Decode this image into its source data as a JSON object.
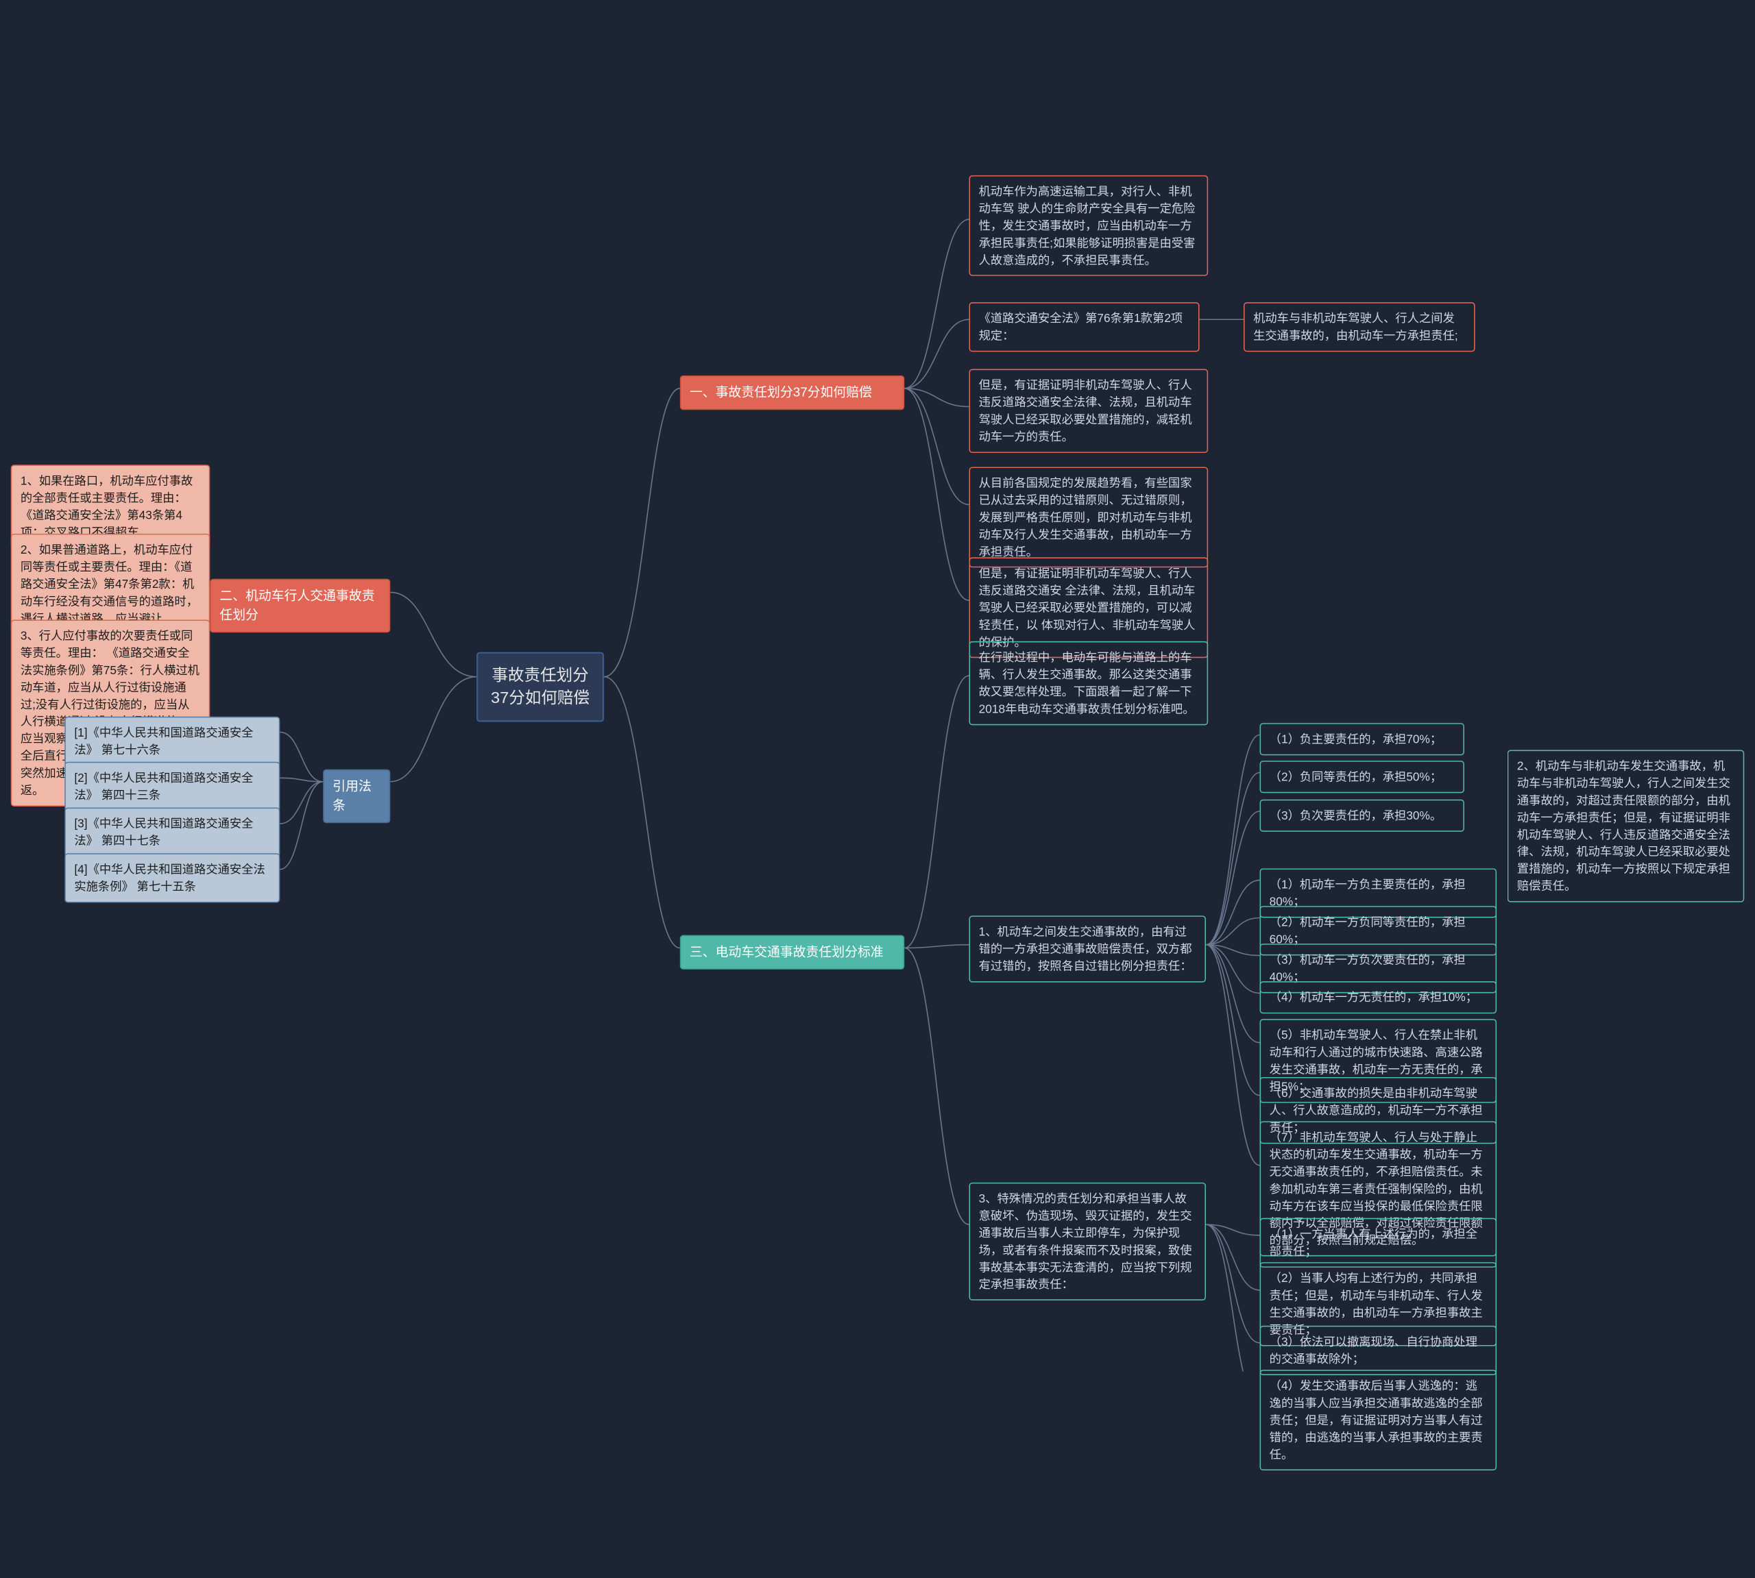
{
  "colors": {
    "bg": "#1d2434",
    "root_fill": "#2c3a55",
    "root_border": "#3c5a8a",
    "red_fill": "#e06555",
    "red_border": "#c9523f",
    "red_l2_fill": "#f0b8a8",
    "red_l2_border": "#e06555",
    "teal_fill": "#4fb8a8",
    "teal_border": "#3a9e8e",
    "teal_l2_fill": "#b8e0d8",
    "teal_l2_border": "#4fb8a8",
    "blue_fill": "#5a7fa8",
    "blue_border": "#4a6a90",
    "blue_l2_fill": "#b8c8d8",
    "blue_l2_border": "#5a7fa8",
    "r_red_border": "#e06555",
    "r_teal_border": "#4fb8a8",
    "r_text": "#c9d4e6",
    "conn": "#6a788f"
  },
  "root": "事故责任划分37分如何赔偿",
  "b1": {
    "title": "一、事故责任划分37分如何赔偿",
    "c1": "机动车作为高速运输工具，对行人、非机动车驾 驶人的生命财产安全具有一定危险性，发生交通事故时，应当由机动车一方承担民事责任;如果能够证明损害是由受害人故意造成的，不承担民事责任。",
    "c2": "《道路交通安全法》第76条第1款第2项规定：",
    "c2a": "机动车与非机动车驾驶人、行人之间发生交通事故的，由机动车一方承担责任;",
    "c3": "但是，有证据证明非机动车驾驶人、行人违反道路交通安全法律、法规，且机动车驾驶人已经采取必要处置措施的，减轻机动车一方的责任。",
    "c4": "从目前各国规定的发展趋势看，有些国家已从过去采用的过错原则、无过错原则，发展到严格责任原则，即对机动车与非机动车及行人发生交通事故，由机动车一方承担责任。",
    "c5": "但是，有证据证明非机动车驾驶人、行人违反道路交通安 全法律、法规，且机动车驾驶人已经采取必要处置措施的，可以减轻责任，以 体现对行人、非机动车驾驶人的保护。"
  },
  "b2": {
    "title": "二、机动车行人交通事故责任划分",
    "c1": "1、如果在路口，机动车应付事故的全部责任或主要责任。理由：《道路交通安全法》第43条第4项：交叉路口不得超车",
    "c2": "2、如果普通道路上，机动车应付同等责任或主要责任。理由：《道路交通安全法》第47条第2款：机动车行经没有交通信号的道路时，遇行人横过道路，应当避让。",
    "c3": "3、行人应付事故的次要责任或同等责任。理由： 《道路交通安全法实施条例》第75条：行人横过机动车道，应当从人行过街设施通过;没有人行过街设施的，应当从人行横道通过;没有人行横道的，应当观察来往车辆的情况，确认安全后直行通过，不得在车辆临近时突然加速横穿或者中途倒退、折返。"
  },
  "b3": {
    "title": "三、电动车交通事故责任划分标准",
    "intro": "在行驶过程中，电动车可能与道路上的车辆、行人发生交通事故。那么这类交通事故又要怎样处理。下面跟着一起了解一下2018年电动车交通事故责任划分标准吧。",
    "p1": "1、机动车之间发生交通事故的，由有过错的一方承担交通事故赔偿责任，双方都有过错的，按照各自过错比例分担责任：",
    "p1a": "（1）负主要责任的，承担70%；",
    "p1b": "（2）负同等责任的，承担50%；",
    "p1c": "（3）负次要责任的，承担30%。",
    "p2": "2、机动车与非机动车发生交通事故，机动车与非机动车驾驶人，行人之间发生交通事故的，对超过责任限额的部分，由机动车一方承担责任；但是，有证据证明非机动车驾驶人、行人违反道路交通安全法律、法规，机动车驾驶人已经采取必要处置措施的，机动车一方按照以下规定承担赔偿责任。",
    "p2a": "（1）机动车一方负主要责任的，承担80%；",
    "p2b": "（2）机动车一方负同等责任的，承担60%；",
    "p2c": "（3）机动车一方负次要责任的，承担40%；",
    "p2d": "（4）机动车一方无责任的，承担10%；",
    "p2e": "（5）非机动车驾驶人、行人在禁止非机动车和行人通过的城市快速路、高速公路发生交通事故，机动车一方无责任的，承担5%；",
    "p2f": "（6）交通事故的损失是由非机动车驾驶人、行人故意造成的，机动车一方不承担责任；",
    "p2g": "（7）非机动车驾驶人、行人与处于静止状态的机动车发生交通事故，机动车一方无交通事故责任的，不承担赔偿责任。未参加机动车第三者责任强制保险的，由机动车方在该车应当投保的最低保险责任限额内予以全部赔偿，对超过保险责任限额的部分，按照当前规定赔偿。",
    "p3": "3、特殊情况的责任划分和承担当事人故意破坏、伪造现场、毁灭证据的，发生交通事故后当事人未立即停车，为保护现场，或者有条件报案而不及时报案，致使事故基本事实无法查清的，应当按下列规定承担事故责任：",
    "p3a": "（1）一方当事人有上述行为的，承担全部责任；",
    "p3b": "（2）当事人均有上述行为的，共同承担责任；但是，机动车与非机动车、行人发生交通事故的，由机动车一方承担事故主要责任；",
    "p3c": "（3）依法可以撤离现场、自行协商处理的交通事故除外；",
    "p3d": "（4）发生交通事故后当事人逃逸的：逃逸的当事人应当承担交通事故逃逸的全部责任；但是，有证据证明对方当事人有过错的，由逃逸的当事人承担事故的主要责任。"
  },
  "b4": {
    "title": "引用法条",
    "c1": "[1]《中华人民共和国道路交通安全法》 第七十六条",
    "c2": "[2]《中华人民共和国道路交通安全法》 第四十三条",
    "c3": "[3]《中华人民共和国道路交通安全法》 第四十七条",
    "c4": "[4]《中华人民共和国道路交通安全法实施条例》 第七十五条"
  }
}
